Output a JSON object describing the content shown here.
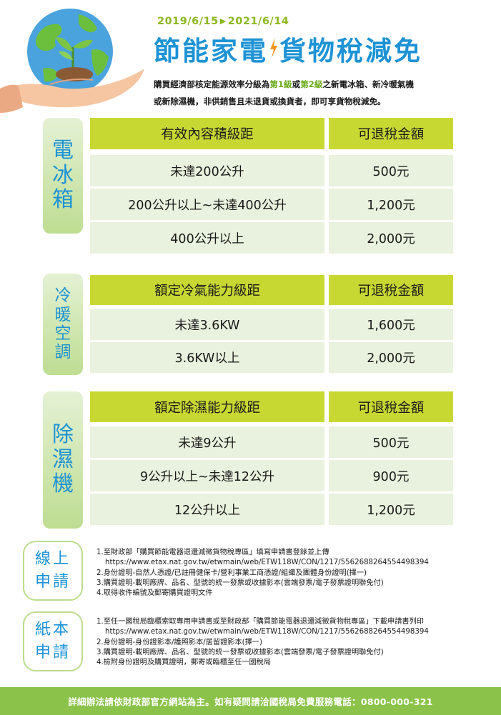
{
  "header": {
    "date_start": "2019/6/15",
    "date_arrow": "▶",
    "date_end": "2021/6/14",
    "title_part1": "節能家電",
    "title_part2": "貨物稅減免",
    "intro": {
      "t1": "購買經濟部核定能源效率分級為",
      "level1": "第1級",
      "t2": "或",
      "level2": "第2級",
      "t3": "之新電冰箱、新冷暖氣機",
      "line2": "或新除濕機，非供銷售且未退貨或換貨者，即可享貨物稅減免。"
    }
  },
  "fridge": {
    "tab": [
      "電",
      "冰",
      "箱"
    ],
    "head": [
      "有效內容積級距",
      "可退稅金額"
    ],
    "rows": [
      [
        "未達200公升",
        "500元"
      ],
      [
        "200公升以上~未達400公升",
        "1,200元"
      ],
      [
        "400公升以上",
        "2,000元"
      ]
    ]
  },
  "ac": {
    "tab": [
      "冷",
      "暖",
      "空",
      "調"
    ],
    "head": [
      "額定冷氣能力級距",
      "可退稅金額"
    ],
    "rows": [
      [
        "未達3.6KW",
        "1,600元"
      ],
      [
        "3.6KW以上",
        "2,000元"
      ]
    ]
  },
  "dehumidifier": {
    "tab": [
      "除",
      "濕",
      "機"
    ],
    "head": [
      "額定除濕能力級距",
      "可退稅金額"
    ],
    "rows": [
      [
        "未達9公升",
        "500元"
      ],
      [
        "9公升以上~未達12公升",
        "900元"
      ],
      [
        "12公升以上",
        "1,200元"
      ]
    ]
  },
  "online": {
    "badge": [
      "線上",
      "申請"
    ],
    "items": [
      "1.至財政部「購買節能電器退還減徵貨物稅專區」填寫申請書登錄並上傳",
      "https://www.etax.nat.gov.tw/etwmain/web/ETW118W/CON/1217/5562688264554498394",
      "2.身份證明-自然人憑證/已註冊健保卡/營利事業工商憑證/組織及團體身份證明(擇一)",
      "3.購買證明-載明廠牌、品名、型號的統一發票或收據影本(雲端發票/電子發票證明聯免付)",
      "4.取得收件編號及郵寄購買證明文件"
    ]
  },
  "paper": {
    "badge": [
      "紙本",
      "申請"
    ],
    "items": [
      "1.至任一國稅局臨櫃索取專用申請書或至財政部「購買節能電器退還減徵貨物稅專區」下載申請書列印",
      "https://www.etax.nat.gov.tw/etwmain/web/ETW118W/CON/1217/5562688264554498394",
      "2.身份證明-身份證影本/護照影本/居留證影本(擇一)",
      "3.購買證明-載明廠牌、品名、型號的統一發票或收據影本(雲端發票/電子發票證明聯免付)",
      "4.檢附身份證明及購買證明，郵寄或臨櫃至任一國稅局"
    ]
  },
  "footer": {
    "text": "詳細辦法請依財政部官方網站為主。如有疑問請洽國稅局免費服務電話：0800-000-321"
  },
  "colors": {
    "brand_blue": "#1d93d5",
    "date_green": "#8cb820",
    "header_cell": "#c8d833",
    "body_cell": "#e8f2de",
    "footer_green": "#8bc34a"
  },
  "icons": [
    "globe-in-hands-illustration",
    "lightning-bolt-icon"
  ]
}
